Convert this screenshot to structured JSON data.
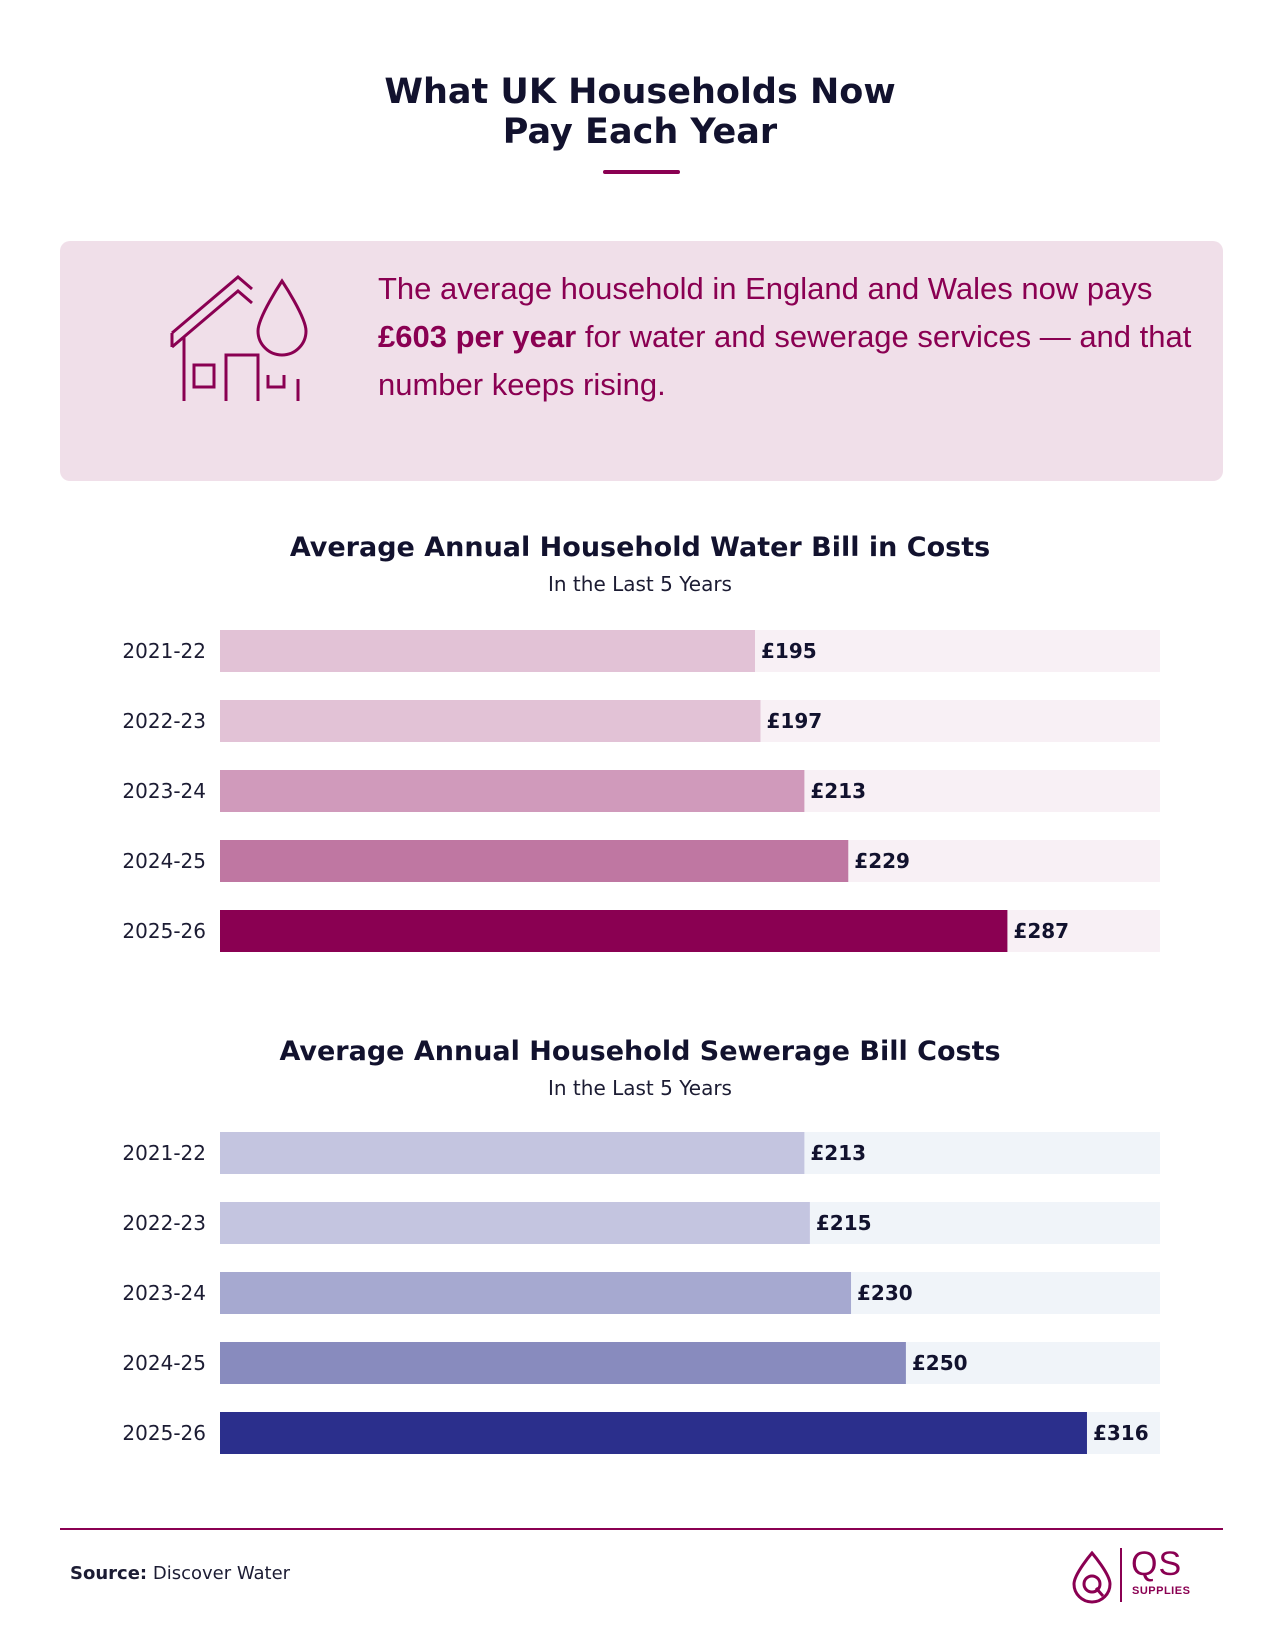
{
  "header": {
    "title_line1": "What UK Households Now",
    "title_line2": "Pay Each Year",
    "accent_color": "#8a0052"
  },
  "callout": {
    "icon": "house-water-drop-icon",
    "text_before": "The average household in England and Wales now pays ",
    "text_bold": "£603 per year",
    "text_after": " for water and sewerage services — and that number keeps rising."
  },
  "chart_data": [
    {
      "type": "bar",
      "orientation": "horizontal",
      "title": "Average Annual Household Water Bill in Costs",
      "subtitle": "In the Last 5 Years",
      "categories": [
        "2021-22",
        "2022-23",
        "2023-24",
        "2024-25",
        "2025-26"
      ],
      "values": [
        195,
        197,
        213,
        229,
        287
      ],
      "value_labels": [
        "£195",
        "£197",
        "£213",
        "£229",
        "£287"
      ],
      "bar_colors": [
        "#e2c2d6",
        "#e2c2d6",
        "#d09abb",
        "#bf77a2",
        "#8a0052"
      ],
      "track_color": "#f8f0f5"
    },
    {
      "type": "bar",
      "orientation": "horizontal",
      "title": "Average Annual Household Sewerage Bill Costs",
      "subtitle": "In the Last 5 Years",
      "categories": [
        "2021-22",
        "2022-23",
        "2023-24",
        "2024-25",
        "2025-26"
      ],
      "values": [
        213,
        215,
        230,
        250,
        316
      ],
      "value_labels": [
        "£213",
        "£215",
        "£230",
        "£250",
        "£316"
      ],
      "bar_colors": [
        "#c4c5e0",
        "#c4c5e0",
        "#a6a9d0",
        "#888bbe",
        "#2b2f8c"
      ],
      "track_color": "#f0f4f9"
    }
  ],
  "footer": {
    "source_label": "Source:",
    "source_value": "Discover Water",
    "logo_text": "QS",
    "logo_subtext": "SUPPLIES",
    "logo_icon": "qs-drop-logo-icon"
  }
}
